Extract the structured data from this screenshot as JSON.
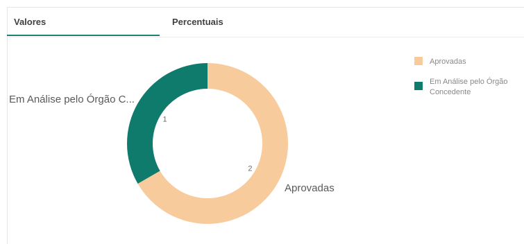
{
  "tabs": [
    {
      "label": "Valores",
      "active": true
    },
    {
      "label": "Percentuais",
      "active": false
    }
  ],
  "chart_data": {
    "type": "pie",
    "variant": "donut",
    "categories": [
      "Aprovadas",
      "Em Análise pelo Órgão Concedente"
    ],
    "values": [
      2,
      1
    ],
    "slice_labels": [
      "Aprovadas",
      "Em Análise pelo Órgão C..."
    ],
    "legend": [
      {
        "label_lines": [
          "Aprovadas"
        ],
        "color": "#f8cb9c"
      },
      {
        "label_lines": [
          "Em Análise pelo Órgão",
          "Concedente"
        ],
        "color": "#0f7b6c"
      }
    ],
    "colors": [
      "#f8cb9c",
      "#0f7b6c"
    ],
    "legend_position": "right"
  }
}
